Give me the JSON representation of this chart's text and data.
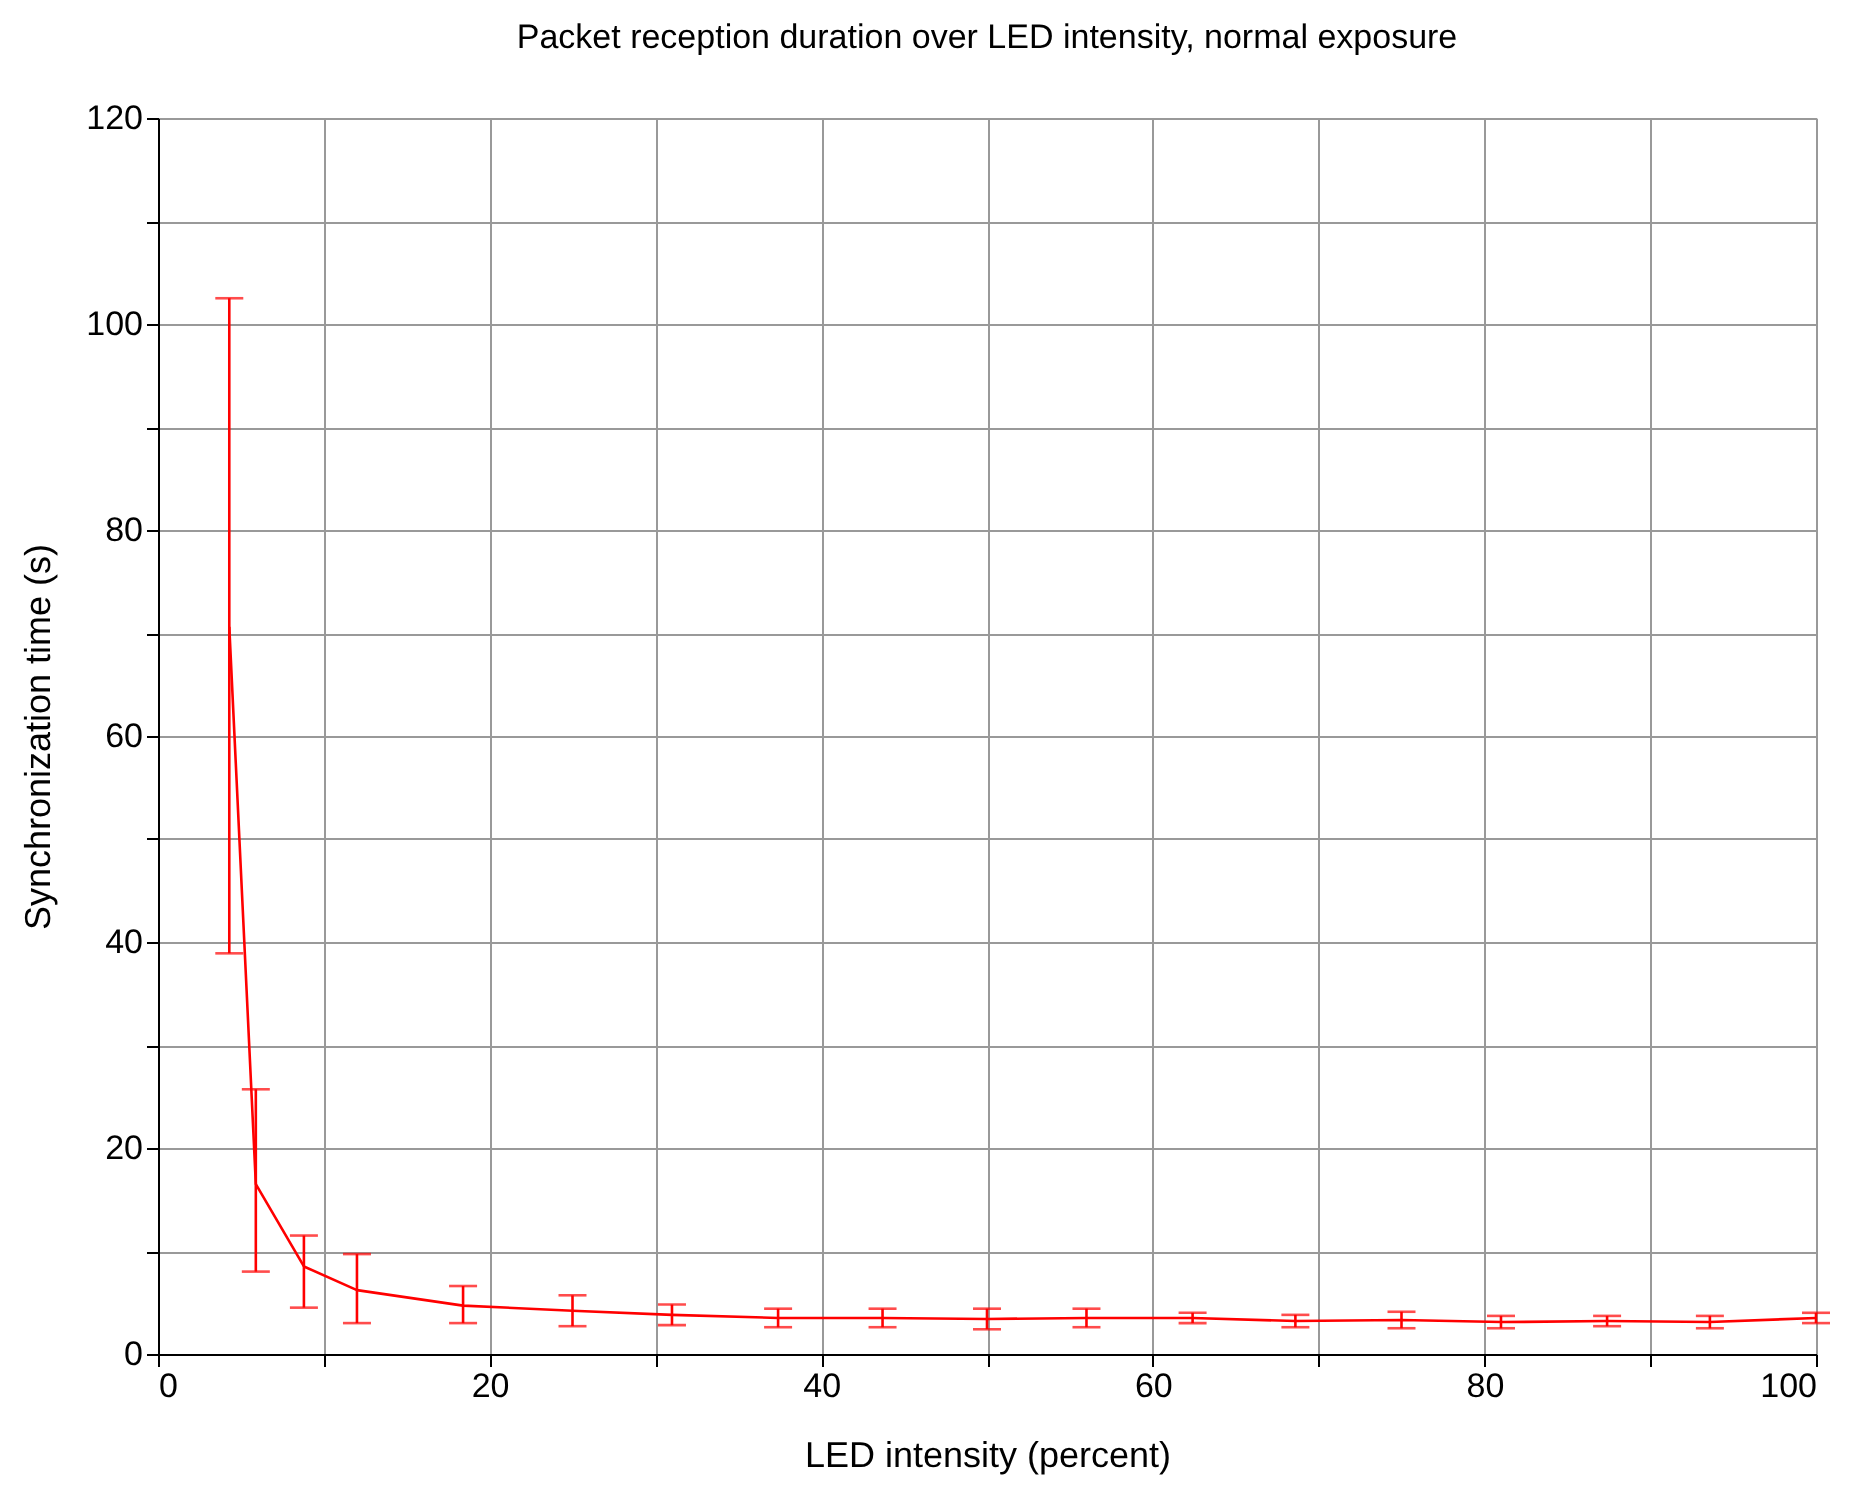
{
  "chart_data": {
    "type": "line",
    "title": "Packet reception duration over LED intensity, normal exposure",
    "xlabel": "LED intensity (percent)",
    "ylabel": "Synchronization time (s)",
    "x": [
      4.3,
      5.9,
      8.8,
      12,
      18.4,
      25,
      31,
      37.4,
      43.7,
      50,
      56,
      62.4,
      68.6,
      75,
      81,
      87.4,
      93.6,
      100
    ],
    "series": [
      {
        "color": "#ff0000",
        "values": [
          70.6,
          16.5,
          8.5,
          6.2,
          4.7,
          4.2,
          3.8,
          3.5,
          3.5,
          3.4,
          3.5,
          3.5,
          3.2,
          3.3,
          3.1,
          3.2,
          3.1,
          3.5
        ],
        "errors": [
          [
            38.9,
            102.5
          ],
          [
            8,
            25.7
          ],
          [
            4.5,
            11.5
          ],
          [
            3,
            9.7
          ],
          [
            3,
            6.6
          ],
          [
            2.7,
            5.7
          ],
          [
            2.8,
            4.8
          ],
          [
            2.6,
            4.4
          ],
          [
            2.6,
            4.4
          ],
          [
            2.4,
            4.4
          ],
          [
            2.6,
            4.4
          ],
          [
            3,
            4
          ],
          [
            2.6,
            3.8
          ],
          [
            2.5,
            4.1
          ],
          [
            2.5,
            3.7
          ],
          [
            2.7,
            3.7
          ],
          [
            2.5,
            3.7
          ],
          [
            3,
            4
          ]
        ]
      }
    ],
    "xlim": [
      0,
      100
    ],
    "ylim": [
      0,
      120
    ],
    "xticks": [
      0,
      {
        "value": 10,
        "label": null
      },
      20,
      {
        "value": 30,
        "label": null
      },
      40,
      {
        "value": 50,
        "label": null
      },
      60,
      {
        "value": 70,
        "label": null
      },
      80,
      {
        "value": 90,
        "label": null
      },
      100
    ],
    "yticks": [
      0,
      {
        "value": 10,
        "label": null
      },
      20,
      {
        "value": 30,
        "label": null
      },
      40,
      {
        "value": 50,
        "label": null
      },
      60,
      {
        "value": 70,
        "label": null
      },
      80,
      {
        "value": 90,
        "label": null
      },
      100,
      {
        "value": 110,
        "label": null
      },
      120
    ],
    "grid": true,
    "marker": "none",
    "line_style": "solid"
  }
}
